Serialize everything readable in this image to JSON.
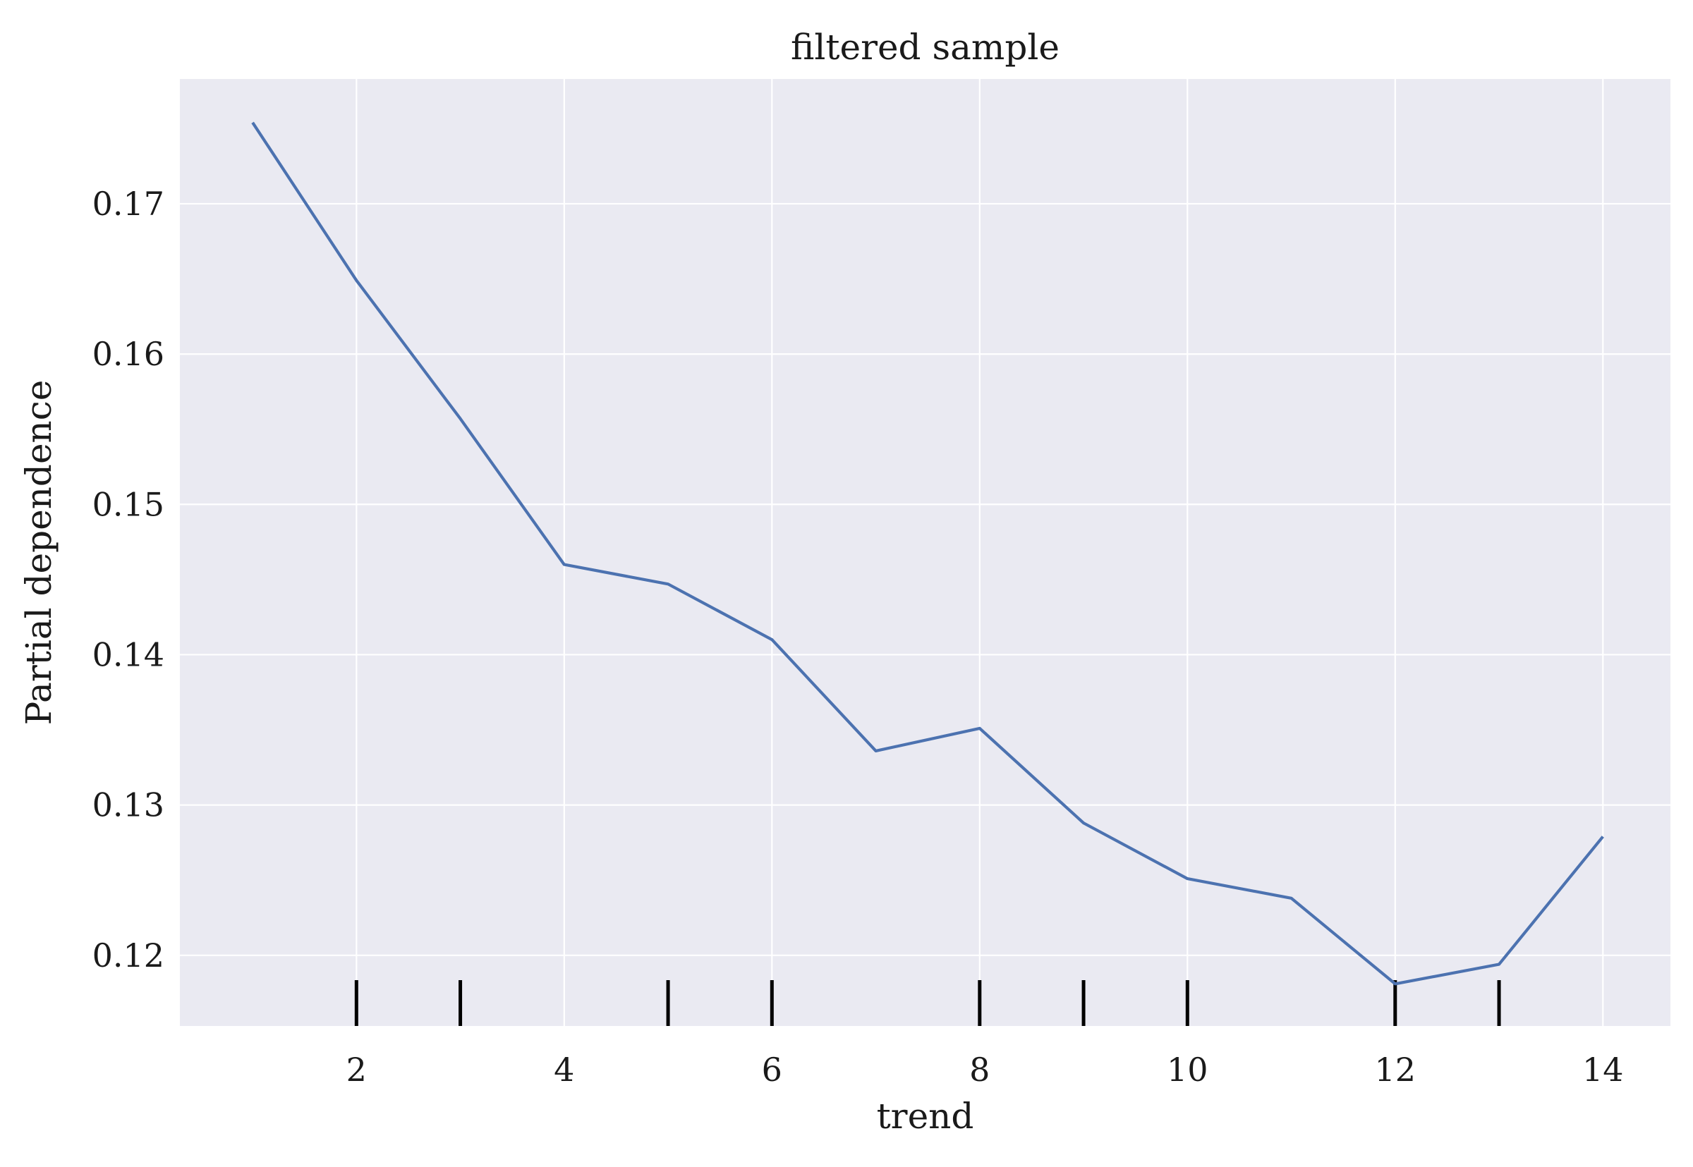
{
  "colors": {
    "plot_background": "#EAEAF2",
    "grid": "#FFFFFF",
    "line": "#4C72B0",
    "rug": "#000000"
  },
  "chart_data": {
    "type": "line",
    "title": "filtered sample",
    "xlabel": "trend",
    "ylabel": "Partial dependence",
    "xlim": [
      0.3,
      14.65
    ],
    "ylim": [
      0.1153,
      0.1783
    ],
    "grid": true,
    "x_ticks": [
      2,
      4,
      6,
      8,
      10,
      12,
      14
    ],
    "x_tick_labels": [
      "2",
      "4",
      "6",
      "8",
      "10",
      "12",
      "14"
    ],
    "y_ticks": [
      0.12,
      0.13,
      0.14,
      0.15,
      0.16,
      0.17
    ],
    "y_tick_labels": [
      "0.12",
      "0.13",
      "0.14",
      "0.15",
      "0.16",
      "0.17"
    ],
    "x": [
      1,
      2,
      3,
      4,
      5,
      6,
      7,
      8,
      9,
      10,
      11,
      12,
      13,
      14
    ],
    "y": [
      0.1754,
      0.1649,
      0.1557,
      0.146,
      0.1447,
      0.141,
      0.1336,
      0.1351,
      0.1288,
      0.1251,
      0.1238,
      0.1181,
      0.1194,
      0.1279
    ],
    "deciles": [
      2,
      3,
      5,
      6,
      8,
      9,
      10,
      12,
      13
    ]
  }
}
